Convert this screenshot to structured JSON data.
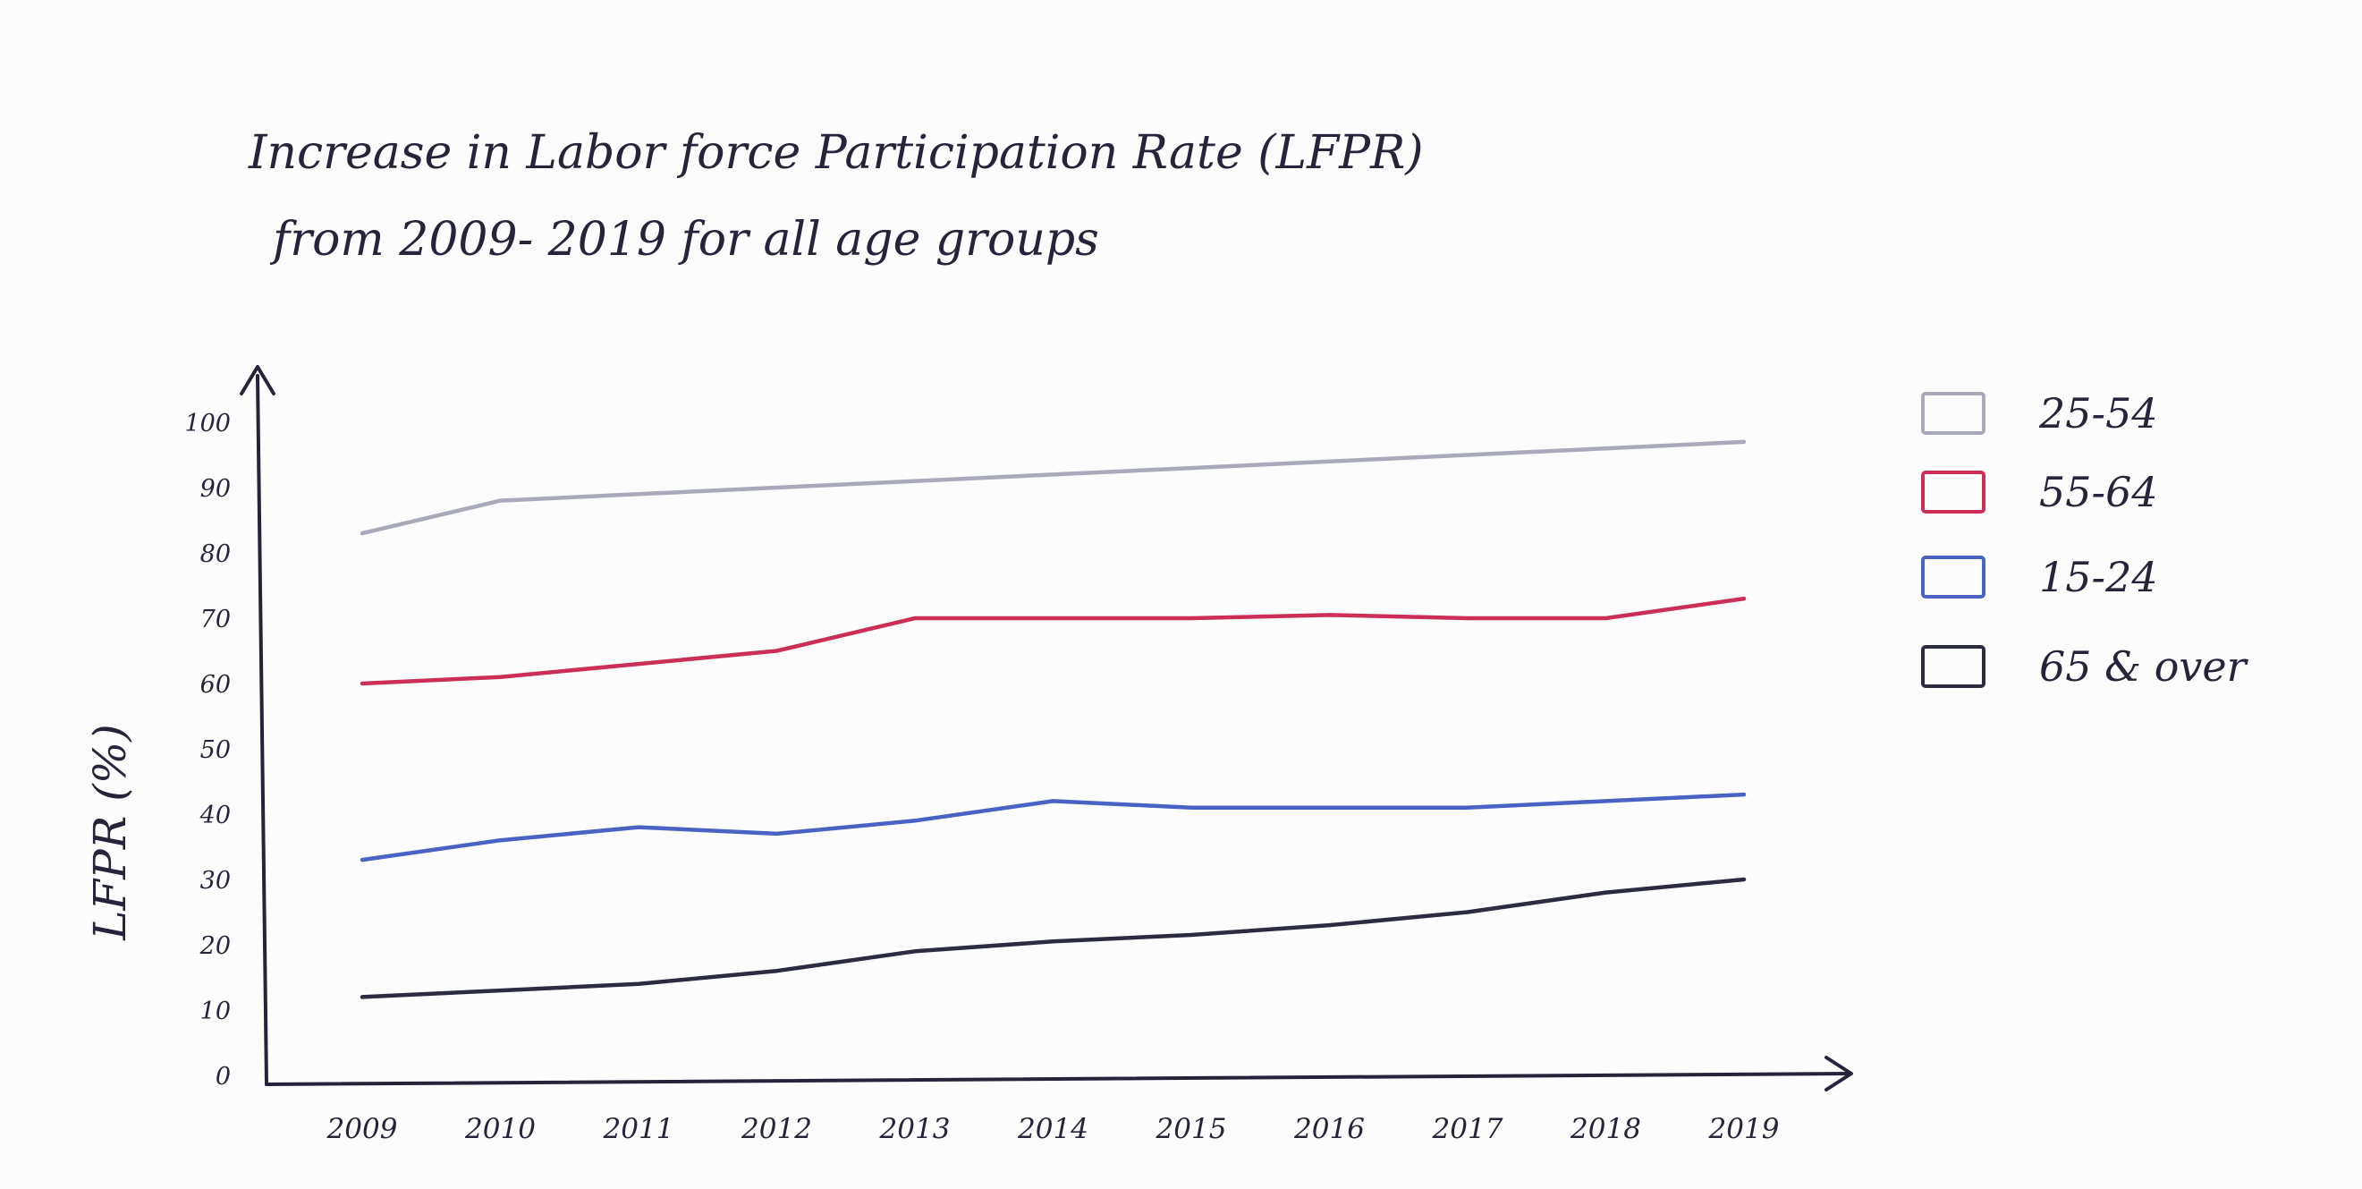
{
  "chart_data": {
    "type": "line",
    "title": [
      "Increase in Labor force Participation Rate (LFPR)",
      "from 2009- 2019 for all age groups"
    ],
    "xlabel": "",
    "ylabel": "LFPR (%)",
    "x": [
      "2009",
      "2010",
      "2011",
      "2012",
      "2013",
      "2014",
      "2015",
      "2016",
      "2017",
      "2018",
      "2019"
    ],
    "yticks": [
      "0",
      "10",
      "20",
      "30",
      "40",
      "50",
      "60",
      "70",
      "80",
      "90",
      "100"
    ],
    "ylim": [
      0,
      100
    ],
    "grid": false,
    "legend": "right",
    "series": [
      {
        "name": "25-54",
        "color": "#a8aab9",
        "values": [
          83,
          88,
          89,
          90,
          91,
          92,
          93,
          94,
          95,
          96,
          97
        ]
      },
      {
        "name": "55-64",
        "color": "#cc2f55",
        "values": [
          60,
          61,
          63,
          65,
          70,
          70,
          70,
          70.5,
          70,
          70,
          73
        ]
      },
      {
        "name": "15-24",
        "color": "#4a62c4",
        "values": [
          33,
          36,
          38,
          37,
          39,
          42,
          41,
          41,
          41,
          42,
          43
        ]
      },
      {
        "name": "65 & over",
        "color": "#2b2c40",
        "values": [
          12,
          13,
          14,
          16,
          19,
          20.5,
          21.5,
          23,
          25,
          28,
          30
        ]
      }
    ]
  }
}
